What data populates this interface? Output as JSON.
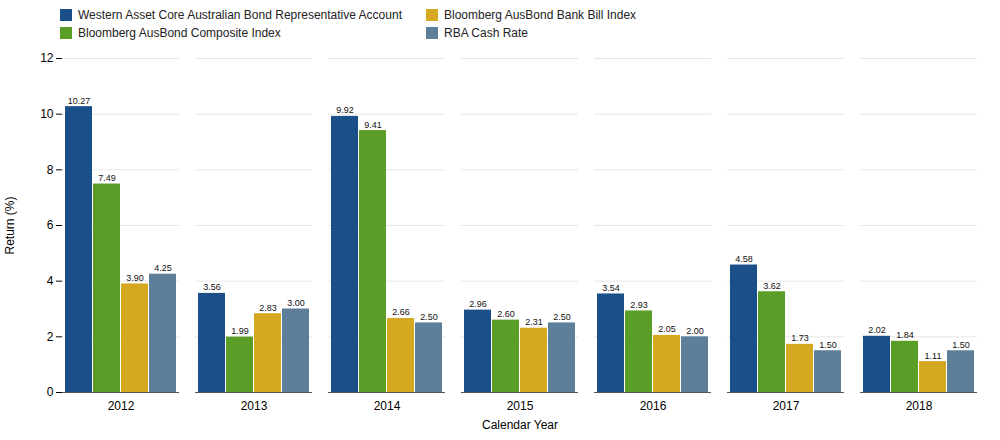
{
  "chart_data": {
    "type": "bar",
    "categories": [
      "2012",
      "2013",
      "2014",
      "2015",
      "2016",
      "2017",
      "2018"
    ],
    "series": [
      {
        "name": "Western Asset Core Australian Bond Representative Account",
        "color": "#1b4f8a",
        "values": [
          10.27,
          3.56,
          9.92,
          2.96,
          3.54,
          4.58,
          2.02
        ],
        "value_labels": [
          "10.27",
          "3.56",
          "9.92",
          "2.96",
          "3.54",
          "4.58",
          "2.02"
        ]
      },
      {
        "name": "Bloomberg AusBond Composite Index",
        "color": "#5a9e28",
        "values": [
          7.49,
          1.99,
          9.41,
          2.6,
          2.93,
          3.62,
          1.84
        ],
        "value_labels": [
          "7.49",
          "1.99",
          "9.41",
          "2.60",
          "2.93",
          "3.62",
          "1.84"
        ]
      },
      {
        "name": "Bloomberg AusBond Bank Bill Index",
        "color": "#d4a820",
        "values": [
          3.9,
          2.83,
          2.66,
          2.31,
          2.05,
          1.73,
          1.11
        ],
        "value_labels": [
          "3.90",
          "2.83",
          "2.66",
          "2.31",
          "2.05",
          "1.73",
          "1.11"
        ]
      },
      {
        "name": "RBA Cash Rate",
        "color": "#5e7f99",
        "values": [
          4.25,
          3.0,
          2.5,
          2.5,
          2.0,
          1.5,
          1.5
        ],
        "value_labels": [
          "4.25",
          "3.00",
          "2.50",
          "2.50",
          "2.00",
          "1.50",
          "1.50"
        ]
      }
    ],
    "xlabel": "Calendar Year",
    "ylabel": "Return (%)",
    "ylim": [
      0,
      12
    ],
    "yticks": [
      0,
      2,
      4,
      6,
      8,
      10,
      12
    ],
    "grid": true,
    "data_labels": true,
    "legend": "top left"
  }
}
